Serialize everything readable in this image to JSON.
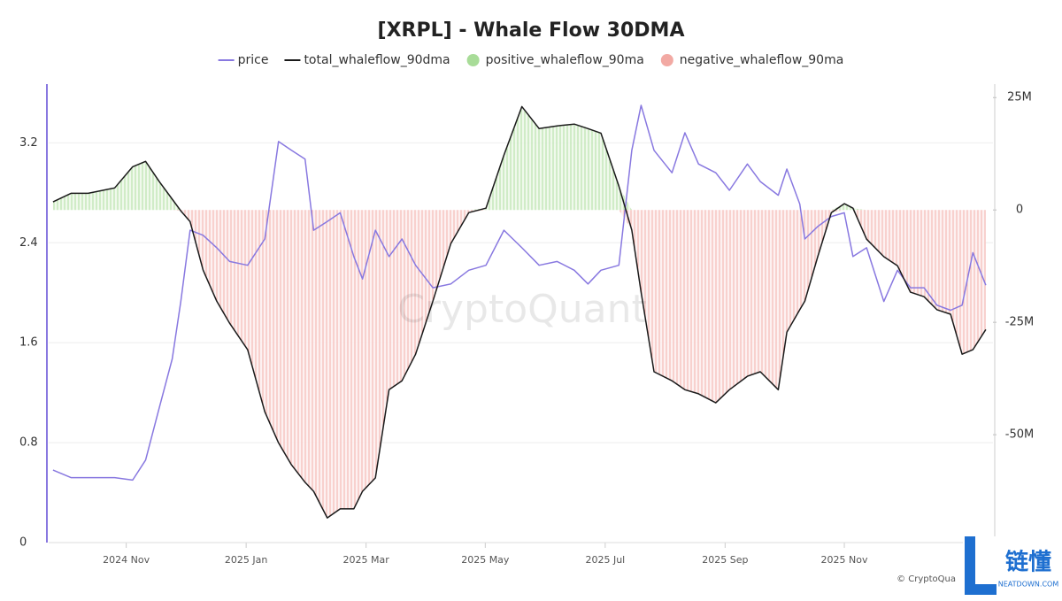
{
  "chart_data": {
    "type": "line",
    "title": "[XRPL] - Whale Flow 30DMA",
    "x": [
      2024.731,
      2024.756,
      2024.78,
      2024.817,
      2024.842,
      2024.86,
      2024.879,
      2024.897,
      2024.909,
      2024.922,
      2024.94,
      2024.959,
      2024.977,
      2025.002,
      2025.026,
      2025.045,
      2025.063,
      2025.082,
      2025.094,
      2025.113,
      2025.131,
      2025.15,
      2025.162,
      2025.18,
      2025.199,
      2025.217,
      2025.236,
      2025.26,
      2025.285,
      2025.31,
      2025.334,
      2025.359,
      2025.384,
      2025.408,
      2025.433,
      2025.457,
      2025.476,
      2025.494,
      2025.519,
      2025.537,
      2025.55,
      2025.568,
      2025.593,
      2025.611,
      2025.63,
      2025.654,
      2025.673,
      2025.698,
      2025.716,
      2025.741,
      2025.753,
      2025.771,
      2025.778,
      2025.796,
      2025.815,
      2025.833,
      2025.845,
      2025.864,
      2025.888,
      2025.907,
      2025.925,
      2025.944,
      2025.962,
      2025.981,
      2025.997,
      2026.012,
      2026.03
    ],
    "series": [
      {
        "name": "price",
        "type": "line",
        "axis": "y",
        "color": "#8878e0",
        "values": [
          0.58,
          0.52,
          0.52,
          0.52,
          0.5,
          0.66,
          1.08,
          1.47,
          1.93,
          2.5,
          2.46,
          2.36,
          2.25,
          2.22,
          2.43,
          3.21,
          3.14,
          3.07,
          2.5,
          2.57,
          2.64,
          2.29,
          2.11,
          2.5,
          2.29,
          2.43,
          2.22,
          2.04,
          2.07,
          2.18,
          2.22,
          2.5,
          2.36,
          2.22,
          2.25,
          2.18,
          2.07,
          2.18,
          2.22,
          3.14,
          3.5,
          3.14,
          2.96,
          3.28,
          3.03,
          2.96,
          2.82,
          3.03,
          2.89,
          2.78,
          2.99,
          2.71,
          2.43,
          2.53,
          2.61,
          2.64,
          2.29,
          2.36,
          1.93,
          2.18,
          2.04,
          2.04,
          1.9,
          1.86,
          1.9,
          2.32,
          2.06
        ]
      },
      {
        "name": "total_whaleflow_90dma",
        "type": "line",
        "axis": "y2",
        "color": "#1a1a1a",
        "values": [
          1.8,
          3.7,
          3.7,
          4.9,
          9.6,
          10.8,
          6.3,
          2.4,
          -0.2,
          -2.6,
          -13.4,
          -20.3,
          -25.2,
          -31.1,
          -44.9,
          -51.8,
          -56.7,
          -60.6,
          -62.6,
          -68.5,
          -66.5,
          -66.5,
          -62.6,
          -59.6,
          -40.0,
          -38.0,
          -32.1,
          -20.3,
          -7.5,
          -0.6,
          0.4,
          12.2,
          23.0,
          18.1,
          18.7,
          19.1,
          18.1,
          17.1,
          5.3,
          -4.5,
          -18.3,
          -36.0,
          -38.0,
          -40.0,
          -40.9,
          -42.9,
          -40.0,
          -37.0,
          -36.0,
          -40.0,
          -27.2,
          -22.2,
          -20.3,
          -10.4,
          -0.6,
          1.4,
          0.4,
          -6.5,
          -10.4,
          -12.4,
          -18.3,
          -19.3,
          -22.2,
          -23.2,
          -32.1,
          -31.1,
          -26.6
        ]
      },
      {
        "name": "positive_whaleflow_90ma",
        "type": "area",
        "axis": "y2",
        "color": "#a8dc98",
        "values": [
          1.8,
          3.7,
          3.7,
          4.9,
          9.6,
          10.8,
          6.3,
          2.4,
          0,
          0,
          0,
          0,
          0,
          0,
          0,
          0,
          0,
          0,
          0,
          0,
          0,
          0,
          0,
          0,
          0,
          0,
          0,
          0,
          0,
          0,
          0.4,
          12.2,
          23.0,
          18.1,
          18.7,
          19.1,
          18.1,
          17.1,
          5.3,
          0,
          0,
          0,
          0,
          0,
          0,
          0,
          0,
          0,
          0,
          0,
          0,
          0,
          0,
          0,
          0,
          1.4,
          0.4,
          0,
          0,
          0,
          0,
          0,
          0,
          0,
          0,
          0,
          0
        ]
      },
      {
        "name": "negative_whaleflow_90ma",
        "type": "area",
        "axis": "y2",
        "color": "#f2a9a3",
        "values": [
          0,
          0,
          0,
          0,
          0,
          0,
          0,
          0,
          -0.2,
          -2.6,
          -13.4,
          -20.3,
          -25.2,
          -31.1,
          -44.9,
          -51.8,
          -56.7,
          -60.6,
          -62.6,
          -68.5,
          -66.5,
          -66.5,
          -62.6,
          -59.6,
          -40.0,
          -38.0,
          -32.1,
          -20.3,
          -7.5,
          -0.6,
          0,
          0,
          0,
          0,
          0,
          0,
          0,
          0,
          0,
          -4.5,
          -18.3,
          -36.0,
          -38.0,
          -40.0,
          -40.9,
          -42.9,
          -40.0,
          -37.0,
          -36.0,
          -40.0,
          -27.2,
          -22.2,
          -20.3,
          -10.4,
          -0.6,
          0,
          0,
          -6.5,
          -10.4,
          -12.4,
          -18.3,
          -19.3,
          -22.2,
          -23.2,
          -32.1,
          -31.1,
          -26.6
        ]
      }
    ],
    "xlim": [
      2024.725,
      2026.04
    ],
    "xticks": [
      {
        "value": 2024.833,
        "label": "2024 Nov"
      },
      {
        "value": 2025.0,
        "label": "2025 Jan"
      },
      {
        "value": 2025.167,
        "label": "2025 Mar"
      },
      {
        "value": 2025.333,
        "label": "2025 May"
      },
      {
        "value": 2025.5,
        "label": "2025 Jul"
      },
      {
        "value": 2025.667,
        "label": "2025 Sep"
      },
      {
        "value": 2025.833,
        "label": "2025 Nov"
      }
    ],
    "ylim": [
      0,
      3.67
    ],
    "yticks": [
      0,
      0.8,
      1.6,
      2.4,
      3.2
    ],
    "y2lim": [
      -74,
      28
    ],
    "y2ticks": [
      {
        "value": 25,
        "label": "25M"
      },
      0,
      {
        "value": -25,
        "label": "-25M"
      },
      {
        "value": -50,
        "label": "-50M"
      }
    ],
    "grid": true,
    "legend": "top"
  },
  "watermark": "CryptoQuant",
  "copyright": "© CryptoQua",
  "logo": {
    "name": "链懂",
    "site": "NEATDOWN.COM"
  }
}
